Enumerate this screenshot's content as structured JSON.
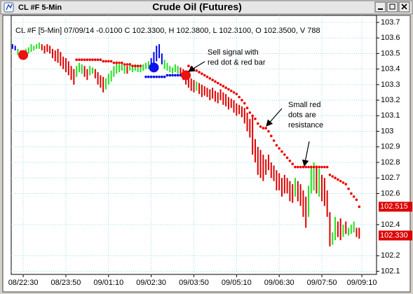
{
  "chart_data": {
    "type": "ohlc",
    "window_title": "CL #F 5-Min",
    "title": "Crude Oil (Futures)",
    "subtitle": "CL #F [5-Min] 07/09/14 -0.0100 C 102.3300, H 102.3800, L 102.3100, O 102.3500, V 788",
    "xlim": [
      -0.5,
      136.5
    ],
    "xticks": [
      {
        "value": 4,
        "label": "08/22:30"
      },
      {
        "value": 20,
        "label": "08/23:50"
      },
      {
        "value": 36,
        "label": "09/01:10"
      },
      {
        "value": 52,
        "label": "09/02:30"
      },
      {
        "value": 68,
        "label": "09/03:50"
      },
      {
        "value": 84,
        "label": "09/05:10"
      },
      {
        "value": 100,
        "label": "09/06:30"
      },
      {
        "value": 116,
        "label": "09/07:50"
      },
      {
        "value": 131,
        "label": "09/09:10"
      }
    ],
    "ylim": [
      102.08,
      103.745
    ],
    "yticks": [
      103.7,
      103.6,
      103.5,
      103.4,
      103.3,
      103.2,
      103.1,
      103,
      102.9,
      102.8,
      102.7,
      102.6,
      102.4,
      102.2,
      102.1
    ],
    "grid": true,
    "bars": [
      {
        "color": "#0000ee",
        "x": [
          0,
          1,
          52,
          53,
          54,
          55,
          56
        ],
        "high": [
          103.56,
          103.55,
          103.47,
          103.51,
          103.55,
          103.56,
          103.5
        ],
        "low": [
          103.53,
          103.52,
          103.4,
          103.42,
          103.45,
          103.47,
          103.43
        ]
      },
      {
        "color": "#22e022",
        "x": [
          2,
          5,
          6,
          7,
          8,
          9,
          10,
          24,
          25,
          26,
          29,
          30,
          35,
          36,
          37,
          38,
          39,
          40,
          41,
          42,
          44,
          45,
          46,
          47,
          48,
          49,
          50,
          51,
          57,
          58,
          59,
          60,
          61,
          62,
          69,
          106,
          111,
          112,
          113,
          115,
          120,
          121,
          124,
          126,
          127,
          128
        ],
        "high": [
          103.53,
          103.53,
          103.54,
          103.56,
          103.55,
          103.56,
          103.57,
          103.42,
          103.44,
          103.43,
          103.42,
          103.41,
          103.34,
          103.37,
          103.39,
          103.42,
          103.45,
          103.43,
          103.44,
          103.43,
          103.44,
          103.42,
          103.43,
          103.42,
          103.42,
          103.43,
          103.44,
          103.45,
          103.46,
          103.44,
          103.42,
          103.41,
          103.43,
          103.42,
          103.32,
          102.7,
          102.65,
          102.78,
          102.8,
          102.76,
          102.35,
          102.45,
          102.4,
          102.38,
          102.4,
          102.42
        ],
        "low": [
          103.49,
          103.49,
          103.5,
          103.51,
          103.52,
          103.53,
          103.53,
          103.35,
          103.38,
          103.37,
          103.36,
          103.37,
          103.27,
          103.3,
          103.32,
          103.35,
          103.37,
          103.38,
          103.39,
          103.37,
          103.39,
          103.38,
          103.39,
          103.38,
          103.38,
          103.39,
          103.4,
          103.4,
          103.4,
          103.39,
          103.38,
          103.37,
          103.38,
          103.37,
          103.26,
          102.58,
          102.45,
          102.6,
          102.62,
          102.58,
          102.27,
          102.3,
          102.32,
          102.33,
          102.34,
          102.35
        ]
      },
      {
        "color": "#dd0000",
        "x": [
          3,
          4,
          11,
          12,
          13,
          14,
          15,
          16,
          17,
          18,
          19,
          20,
          21,
          22,
          23,
          27,
          28,
          31,
          32,
          33,
          34,
          43,
          63,
          64,
          65,
          66,
          67,
          68,
          70,
          71,
          72,
          73,
          74,
          75,
          76,
          77,
          78,
          79,
          80,
          81,
          82,
          83,
          84,
          85,
          86,
          87,
          88,
          89,
          90,
          91,
          92,
          93,
          94,
          95,
          96,
          97,
          98,
          99,
          100,
          101,
          102,
          103,
          104,
          105,
          107,
          108,
          109,
          110,
          114,
          116,
          117,
          118,
          119,
          122,
          123,
          125,
          129,
          130
        ],
        "high": [
          103.52,
          103.51,
          103.56,
          103.55,
          103.56,
          103.55,
          103.53,
          103.52,
          103.53,
          103.51,
          103.48,
          103.47,
          103.45,
          103.42,
          103.4,
          103.42,
          103.4,
          103.4,
          103.38,
          103.36,
          103.35,
          103.42,
          103.41,
          103.4,
          103.37,
          103.36,
          103.34,
          103.33,
          103.31,
          103.3,
          103.29,
          103.28,
          103.27,
          103.28,
          103.26,
          103.25,
          103.27,
          103.25,
          103.24,
          103.22,
          103.21,
          103.2,
          103.18,
          103.17,
          103.16,
          103.15,
          103.12,
          103.08,
          103.1,
          102.95,
          102.9,
          102.88,
          102.85,
          102.82,
          102.85,
          102.8,
          102.78,
          102.75,
          102.73,
          102.7,
          102.72,
          102.7,
          102.68,
          102.66,
          102.68,
          102.66,
          102.62,
          102.58,
          102.78,
          102.72,
          102.7,
          102.62,
          102.48,
          102.42,
          102.44,
          102.42,
          102.38,
          102.38
        ],
        "low": [
          103.47,
          103.48,
          103.52,
          103.5,
          103.51,
          103.5,
          103.47,
          103.45,
          103.44,
          103.42,
          103.4,
          103.38,
          103.36,
          103.33,
          103.3,
          103.35,
          103.33,
          103.34,
          103.3,
          103.28,
          103.25,
          103.37,
          103.36,
          103.33,
          103.3,
          103.28,
          103.26,
          103.25,
          103.24,
          103.22,
          103.23,
          103.22,
          103.2,
          103.21,
          103.19,
          103.18,
          103.2,
          103.17,
          103.16,
          103.14,
          103.15,
          103.12,
          103.1,
          103.11,
          103.09,
          103.05,
          103.0,
          102.96,
          102.85,
          102.8,
          102.72,
          102.7,
          102.68,
          102.72,
          102.75,
          102.7,
          102.68,
          102.62,
          102.62,
          102.58,
          102.6,
          102.6,
          102.55,
          102.54,
          102.55,
          102.52,
          102.45,
          102.38,
          102.6,
          102.55,
          102.52,
          102.45,
          102.26,
          102.32,
          102.3,
          102.34,
          102.32,
          102.31
        ]
      }
    ],
    "dots": [
      {
        "color": "#ee0000",
        "x": [
          24,
          25,
          26,
          27,
          28,
          29,
          30,
          31,
          32,
          33,
          34,
          35,
          36,
          37,
          38,
          39,
          40,
          41,
          42,
          43,
          44,
          45,
          46,
          47,
          48,
          66,
          67,
          68,
          69,
          70,
          71,
          72,
          73,
          74,
          75,
          76,
          77,
          78,
          79,
          80,
          81,
          82,
          83,
          84,
          85,
          86,
          87,
          88,
          89,
          90,
          91,
          92,
          93,
          94,
          95,
          96,
          97,
          98,
          99,
          100,
          101,
          102,
          103,
          104,
          105,
          106,
          107,
          108,
          109,
          110,
          111,
          112,
          113,
          114,
          115,
          116,
          117,
          118,
          119,
          120,
          121,
          122,
          123,
          124,
          125,
          126,
          127,
          128,
          129,
          130
        ],
        "values": [
          103.46,
          103.46,
          103.46,
          103.46,
          103.46,
          103.46,
          103.46,
          103.46,
          103.46,
          103.46,
          103.45,
          103.45,
          103.45,
          103.45,
          103.44,
          103.44,
          103.44,
          103.44,
          103.43,
          103.43,
          103.43,
          103.42,
          103.42,
          103.42,
          103.42,
          103.42,
          103.41,
          103.4,
          103.39,
          103.38,
          103.37,
          103.36,
          103.35,
          103.34,
          103.33,
          103.32,
          103.31,
          103.3,
          103.29,
          103.28,
          103.27,
          103.26,
          103.25,
          103.24,
          103.22,
          103.2,
          103.18,
          103.15,
          103.12,
          103.1,
          103.08,
          103.05,
          103.03,
          103.02,
          103.02,
          103.0,
          102.97,
          102.94,
          102.91,
          102.89,
          102.87,
          102.85,
          102.83,
          102.81,
          102.79,
          102.77,
          102.77,
          102.77,
          102.77,
          102.77,
          102.77,
          102.77,
          102.77,
          102.77,
          102.77,
          102.77,
          102.77,
          102.77,
          102.72,
          102.71,
          102.7,
          102.69,
          102.68,
          102.67,
          102.66,
          102.63,
          102.6,
          102.58,
          102.56,
          102.515
        ]
      },
      {
        "color": "#0000ee",
        "x": [
          50,
          51,
          52,
          53,
          54,
          55,
          56,
          57,
          58,
          59,
          60,
          61,
          62,
          63,
          64
        ],
        "values": [
          103.35,
          103.35,
          103.35,
          103.35,
          103.35,
          103.35,
          103.35,
          103.35,
          103.36,
          103.36,
          103.36,
          103.36,
          103.36,
          103.36,
          103.36
        ]
      }
    ],
    "signals": {
      "x": [
        4,
        53,
        65
      ],
      "values": [
        103.49,
        103.41,
        103.36
      ],
      "colors": [
        "#ee1111",
        "#1010ee",
        "#ee1111"
      ]
    },
    "price_flags": {
      "values": [
        102.515,
        102.33
      ],
      "value_labels": [
        "102.515",
        "102.330"
      ],
      "color": "#dd0000"
    },
    "annotations": [
      [
        "Sell signal with",
        "red dot & red bar"
      ],
      [
        "Small red",
        "dots are",
        "resistance"
      ]
    ]
  }
}
